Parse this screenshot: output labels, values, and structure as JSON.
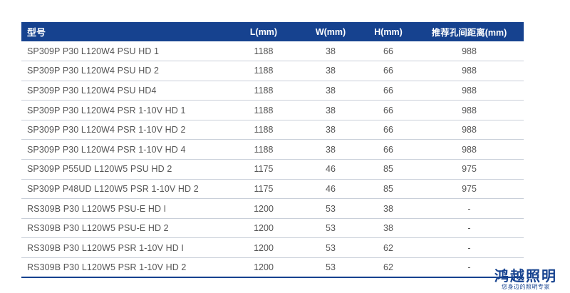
{
  "table": {
    "headers": [
      "型号",
      "L(mm)",
      "W(mm)",
      "H(mm)",
      "推荐孔间距离(mm)"
    ],
    "rows": [
      [
        "SP309P P30 L120W4 PSU HD 1",
        "1188",
        "38",
        "66",
        "988"
      ],
      [
        "SP309P P30 L120W4 PSU HD 2",
        "1188",
        "38",
        "66",
        "988"
      ],
      [
        "SP309P P30 L120W4 PSU HD4",
        "1188",
        "38",
        "66",
        "988"
      ],
      [
        "SP309P P30 L120W4 PSR 1-10V HD 1",
        "1188",
        "38",
        "66",
        "988"
      ],
      [
        "SP309P P30 L120W4 PSR 1-10V HD 2",
        "1188",
        "38",
        "66",
        "988"
      ],
      [
        "SP309P P30 L120W4 PSR 1-10V HD 4",
        "1188",
        "38",
        "66",
        "988"
      ],
      [
        "SP309P P55UD L120W5 PSU HD 2",
        "1175",
        "46",
        "85",
        "975"
      ],
      [
        "SP309P P48UD L120W5 PSR 1-10V HD 2",
        "1175",
        "46",
        "85",
        "975"
      ],
      [
        "RS309B P30 L120W5 PSU-E HD I",
        "1200",
        "53",
        "38",
        "-"
      ],
      [
        "RS309B P30 L120W5 PSU-E HD 2",
        "1200",
        "53",
        "38",
        "-"
      ],
      [
        "RS309B P30 L120W5 PSR 1-10V HD I",
        "1200",
        "53",
        "62",
        "-"
      ],
      [
        "RS309B P30 L120W5 PSR 1-10V HD 2",
        "1200",
        "53",
        "62",
        "-"
      ]
    ]
  },
  "brand": {
    "name": "鸿越照明",
    "slogan": "您身边的照明专家"
  },
  "colors": {
    "header_bg": "#16428f",
    "header_text": "#ffffff",
    "cell_text": "#555555",
    "row_divider": "#c9cfd9",
    "brand": "#16428f"
  }
}
